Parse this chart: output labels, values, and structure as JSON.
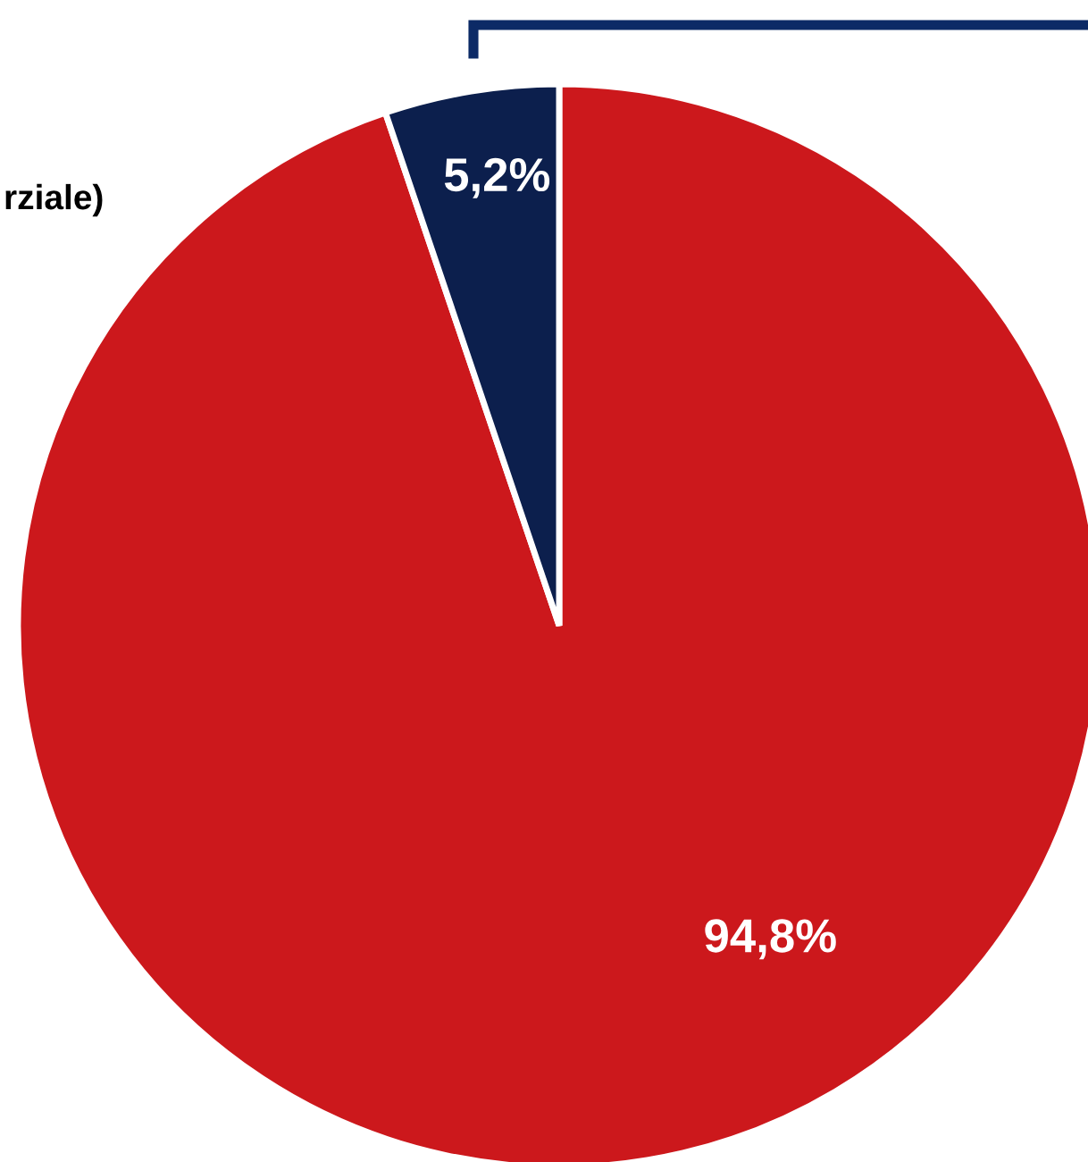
{
  "chart_data": {
    "type": "pie",
    "categories": [
      null,
      null
    ],
    "values": [
      94.8,
      5.2
    ],
    "colors": [
      "#cc181c",
      "#0c1f4d"
    ],
    "value_labels": [
      "94,8%",
      "5,2%"
    ],
    "annotations": [
      "rziale)"
    ]
  }
}
